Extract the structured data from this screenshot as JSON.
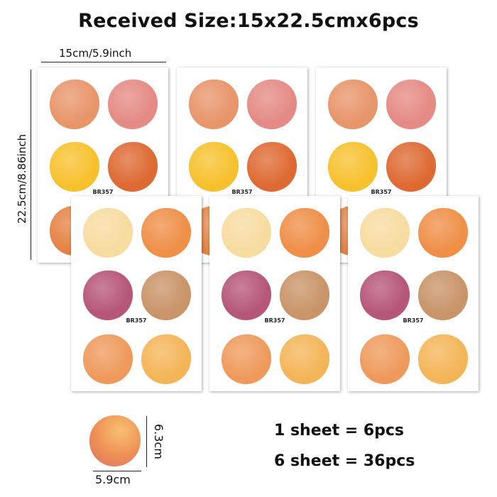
{
  "title": "Received Size:15x22.5cmx6pcs",
  "dimensions": {
    "width_label": "15cm/5.9inch",
    "height_label": "22.5cm/8.86inch",
    "sticker_height": "6.3cm",
    "sticker_width": "5.9cm"
  },
  "sheet_code": "BR357",
  "sheets_count": 6,
  "back_sheet_colors": [
    "#e8956a",
    "#e58a84",
    "#f7c12e",
    "#de6a33",
    "#e58345",
    "#e8a070"
  ],
  "front_sheet_colors": [
    "#f7dca0",
    "#ef8f48",
    "#b65678",
    "#c99468",
    "#ef9a5c",
    "#f4b558"
  ],
  "info": {
    "line1": "1 sheet = 6pcs",
    "line2": "6 sheet = 36pcs"
  }
}
